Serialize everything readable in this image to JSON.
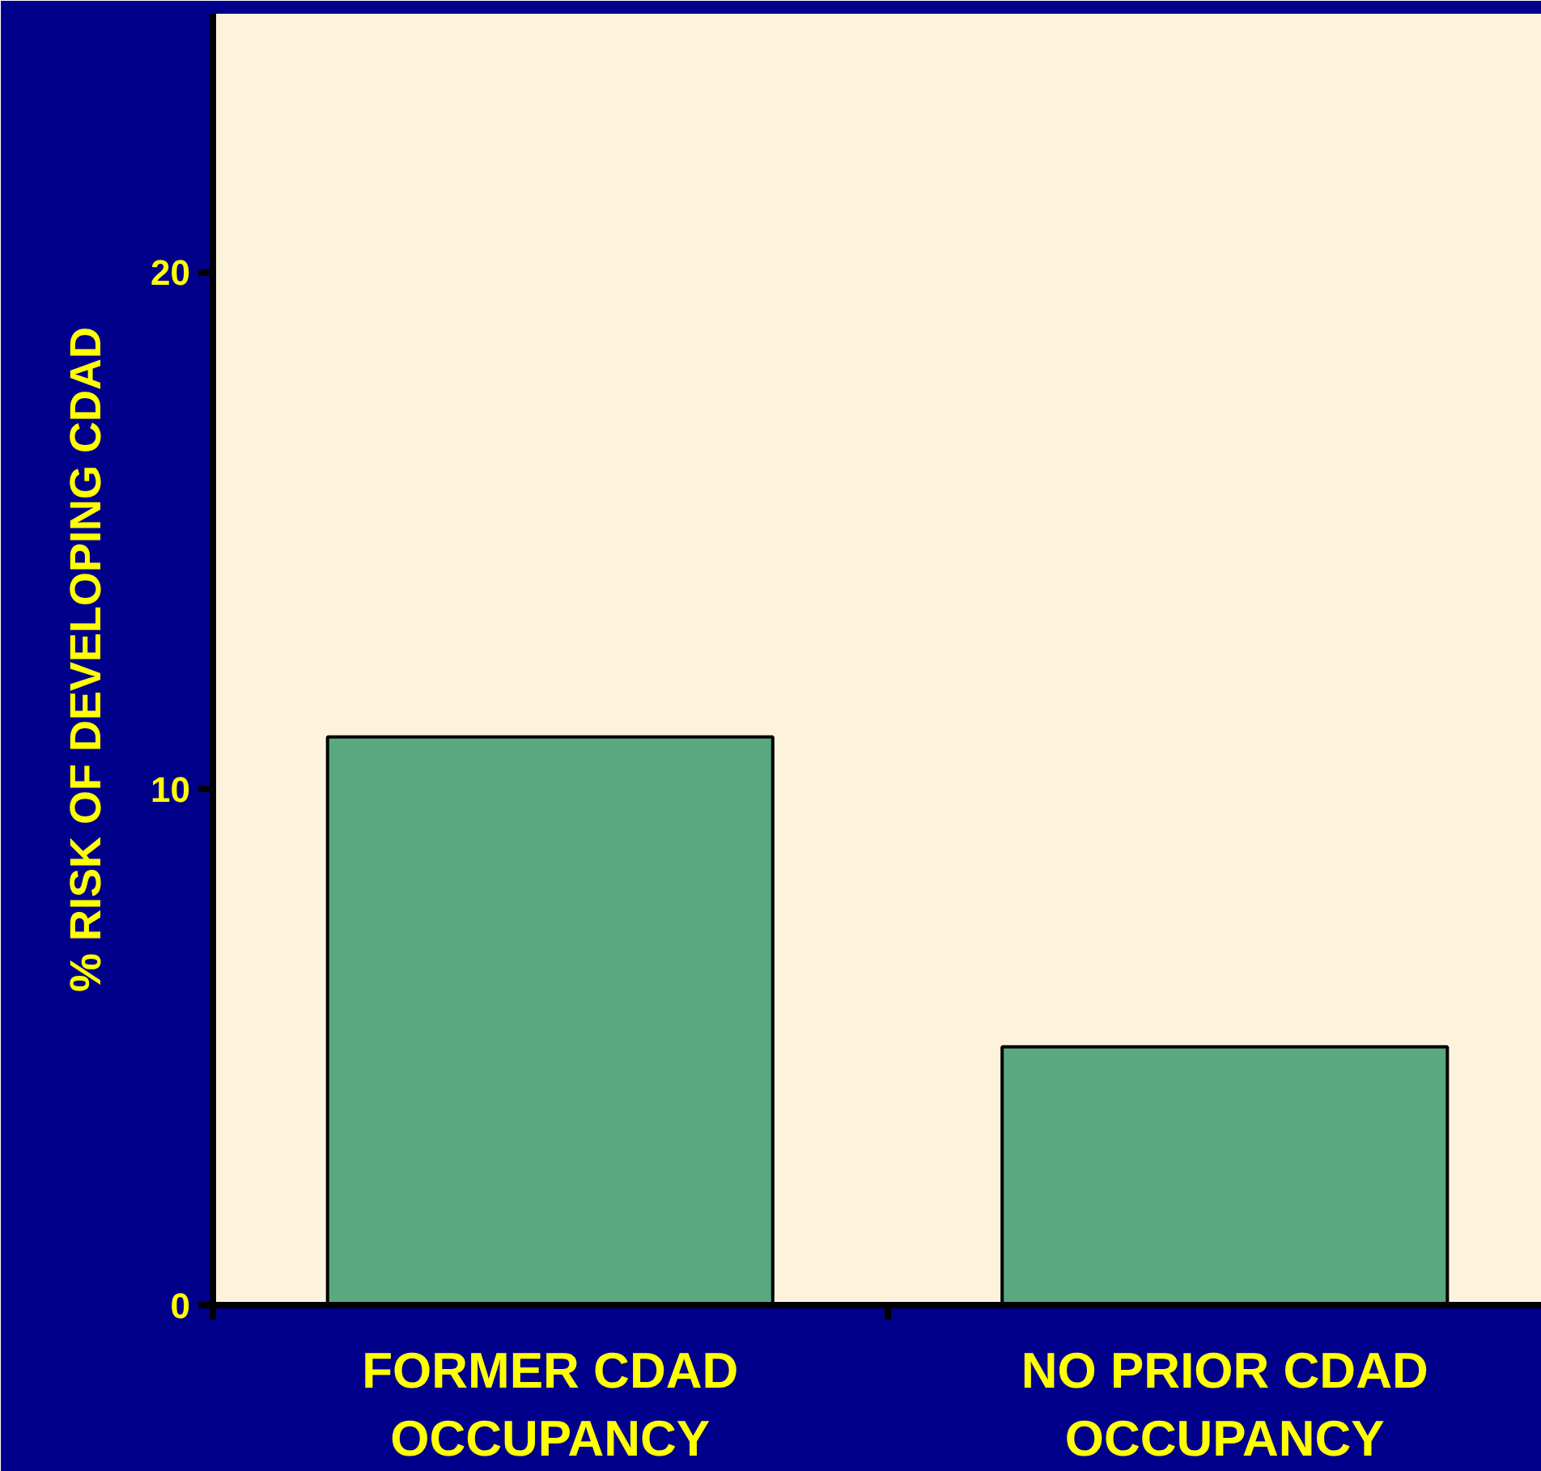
{
  "chart_data": {
    "type": "bar",
    "ylabel": "% RISK OF DEVELOPING CDAD",
    "categories": [
      "FORMER CDAD OCCUPANCY",
      "NO PRIOR CDAD OCCUPANCY"
    ],
    "values": [
      11,
      5
    ],
    "color": "#5aa87e",
    "ylim": [
      0,
      25
    ],
    "yticks": [
      0,
      10,
      20
    ],
    "grid": false
  }
}
